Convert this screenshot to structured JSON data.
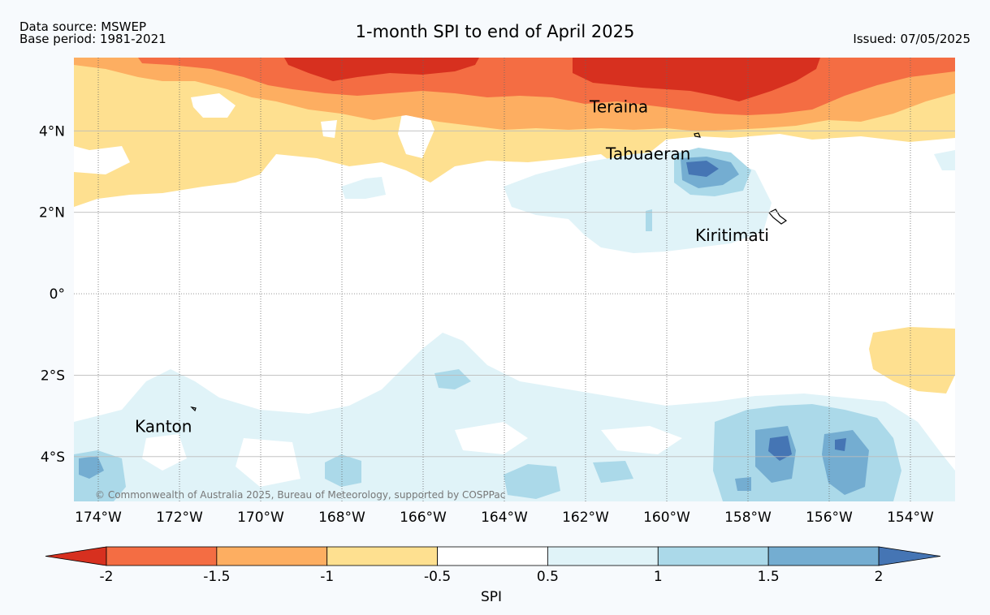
{
  "header": {
    "data_source": "Data source: MSWEP",
    "base_period": "Base period: 1981-2021",
    "title": "1-month SPI to end of April 2025",
    "issued": "Issued: 07/05/2025"
  },
  "map": {
    "lon_range": [
      -174.6,
      -152.9
    ],
    "lat_range": [
      -5.1,
      5.8
    ],
    "lon_ticks": [
      {
        "value": -174,
        "label": "174°W"
      },
      {
        "value": -172,
        "label": "172°W"
      },
      {
        "value": -170,
        "label": "170°W"
      },
      {
        "value": -168,
        "label": "168°W"
      },
      {
        "value": -166,
        "label": "166°W"
      },
      {
        "value": -164,
        "label": "164°W"
      },
      {
        "value": -162,
        "label": "162°W"
      },
      {
        "value": -160,
        "label": "160°W"
      },
      {
        "value": -158,
        "label": "158°W"
      },
      {
        "value": -156,
        "label": "156°W"
      },
      {
        "value": -154,
        "label": "154°W"
      }
    ],
    "lat_ticks": [
      {
        "value": 4,
        "label": "4°N"
      },
      {
        "value": 2,
        "label": "2°N"
      },
      {
        "value": 0,
        "label": "0°"
      },
      {
        "value": -2,
        "label": "2°S"
      },
      {
        "value": -4,
        "label": "4°S"
      }
    ],
    "places": [
      {
        "name": "Teraina",
        "lon": -161.9,
        "lat": 4.45
      },
      {
        "name": "Tabuaeran",
        "lon": -161.5,
        "lat": 3.3
      },
      {
        "name": "Kiritimati",
        "lon": -159.3,
        "lat": 1.3
      },
      {
        "name": "Kanton",
        "lon": -173.1,
        "lat": -3.4
      }
    ],
    "copyright": "© Commonwealth of Australia 2025, Bureau of Meteorology, supported by COSPPac"
  },
  "colorbar": {
    "label": "SPI",
    "ticks": [
      "-2",
      "-1.5",
      "-1",
      "-0.5",
      "0.5",
      "1",
      "1.5",
      "2"
    ],
    "colors": {
      "below_-2": "#d7301f",
      "-2_to_-1.5": "#f46d43",
      "-1.5_to_-1": "#fdae61",
      "-1_to_-0.5": "#fee090",
      "-0.5_to_0.5": "#ffffff",
      "0.5_to_1": "#e0f3f8",
      "1_to_1.5": "#abd9e9",
      "1.5_to_2": "#74add1",
      "above_2": "#4575b4"
    }
  }
}
